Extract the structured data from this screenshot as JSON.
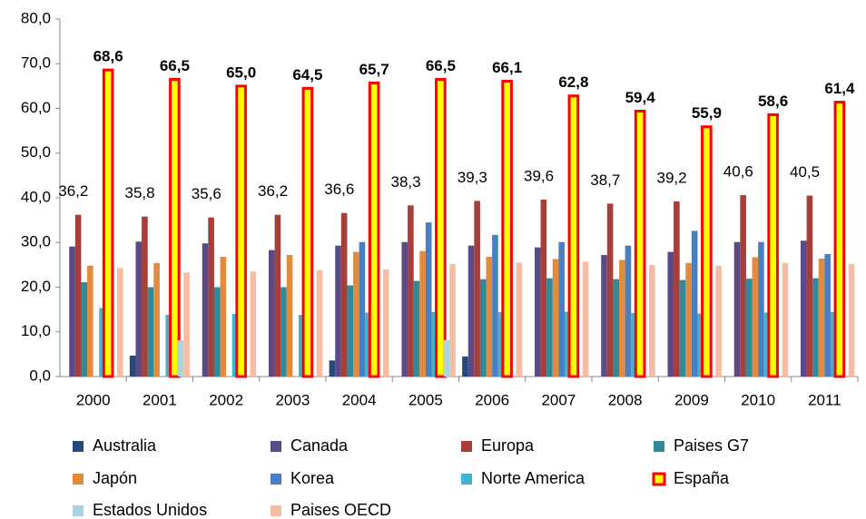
{
  "chart_data": {
    "type": "bar",
    "categories": [
      "2000",
      "2001",
      "2002",
      "2003",
      "2004",
      "2005",
      "2006",
      "2007",
      "2008",
      "2009",
      "2010",
      "2011"
    ],
    "series": [
      {
        "name": "Australia",
        "color": "#254a79",
        "values": [
          null,
          4.7,
          null,
          null,
          3.6,
          null,
          4.5,
          null,
          null,
          null,
          null,
          null
        ]
      },
      {
        "name": "Canada",
        "color": "#5b4a85",
        "values": [
          29.1,
          30.2,
          29.8,
          28.3,
          29.3,
          30.1,
          29.3,
          28.9,
          27.2,
          27.9,
          30.1,
          30.4
        ]
      },
      {
        "name": "Europa",
        "color": "#a63e3a",
        "values": [
          36.2,
          35.8,
          35.6,
          36.2,
          36.6,
          38.3,
          39.3,
          39.6,
          38.7,
          39.2,
          40.6,
          40.5
        ],
        "value_labels": [
          "36,2",
          "35,8",
          "35,6",
          "36,2",
          "36,6",
          "38,3",
          "39,3",
          "39,6",
          "38,7",
          "39,2",
          "40,6",
          "40,5"
        ]
      },
      {
        "name": "Paises G7",
        "color": "#2f8a9c",
        "values": [
          21.1,
          20.0,
          20.0,
          20.0,
          20.4,
          21.4,
          21.8,
          22.0,
          21.8,
          21.6,
          21.9,
          22.0
        ]
      },
      {
        "name": "Japón",
        "color": "#e38b3d",
        "values": [
          24.8,
          25.4,
          26.8,
          27.2,
          27.9,
          28.1,
          26.8,
          26.3,
          26.1,
          25.4,
          26.7,
          26.4
        ]
      },
      {
        "name": "Korea",
        "color": "#4a7fc1",
        "values": [
          null,
          null,
          null,
          null,
          30.1,
          34.5,
          31.7,
          30.1,
          29.3,
          32.6,
          30.1,
          27.4
        ]
      },
      {
        "name": "Norte America",
        "color": "#3fb3cf",
        "values": [
          15.3,
          13.8,
          14.0,
          13.8,
          14.3,
          14.4,
          14.4,
          14.5,
          14.2,
          14.1,
          14.3,
          14.4
        ]
      },
      {
        "name": "España",
        "color": "#ffff00",
        "border": "#ff0000",
        "values": [
          68.6,
          66.5,
          65.0,
          64.5,
          65.7,
          66.5,
          66.1,
          62.8,
          59.4,
          55.9,
          58.6,
          61.4
        ],
        "value_labels": [
          "68,6",
          "66,5",
          "65,0",
          "64,5",
          "65,7",
          "66,5",
          "66,1",
          "62,8",
          "59,4",
          "55,9",
          "58,6",
          "61,4"
        ]
      },
      {
        "name": "Estados Unidos",
        "color": "#a9d3e0",
        "values": [
          null,
          8.1,
          null,
          null,
          null,
          8.2,
          null,
          null,
          null,
          null,
          null,
          null
        ]
      },
      {
        "name": "Paises OECD",
        "color": "#f7bda4",
        "values": [
          24.3,
          23.3,
          23.5,
          23.8,
          24.0,
          25.2,
          25.5,
          25.7,
          25.0,
          24.8,
          25.4,
          25.2
        ]
      }
    ],
    "ylim": [
      0,
      80
    ],
    "yticks": [
      {
        "value": 0,
        "label": "0,0"
      },
      {
        "value": 10,
        "label": "10,0"
      },
      {
        "value": 20,
        "label": "20,0"
      },
      {
        "value": 30,
        "label": "30,0"
      },
      {
        "value": 40,
        "label": "40,0"
      },
      {
        "value": 50,
        "label": "50,0"
      },
      {
        "value": 60,
        "label": "60,0"
      },
      {
        "value": 70,
        "label": "70,0"
      },
      {
        "value": 80,
        "label": "80,0"
      }
    ],
    "grid": false
  }
}
